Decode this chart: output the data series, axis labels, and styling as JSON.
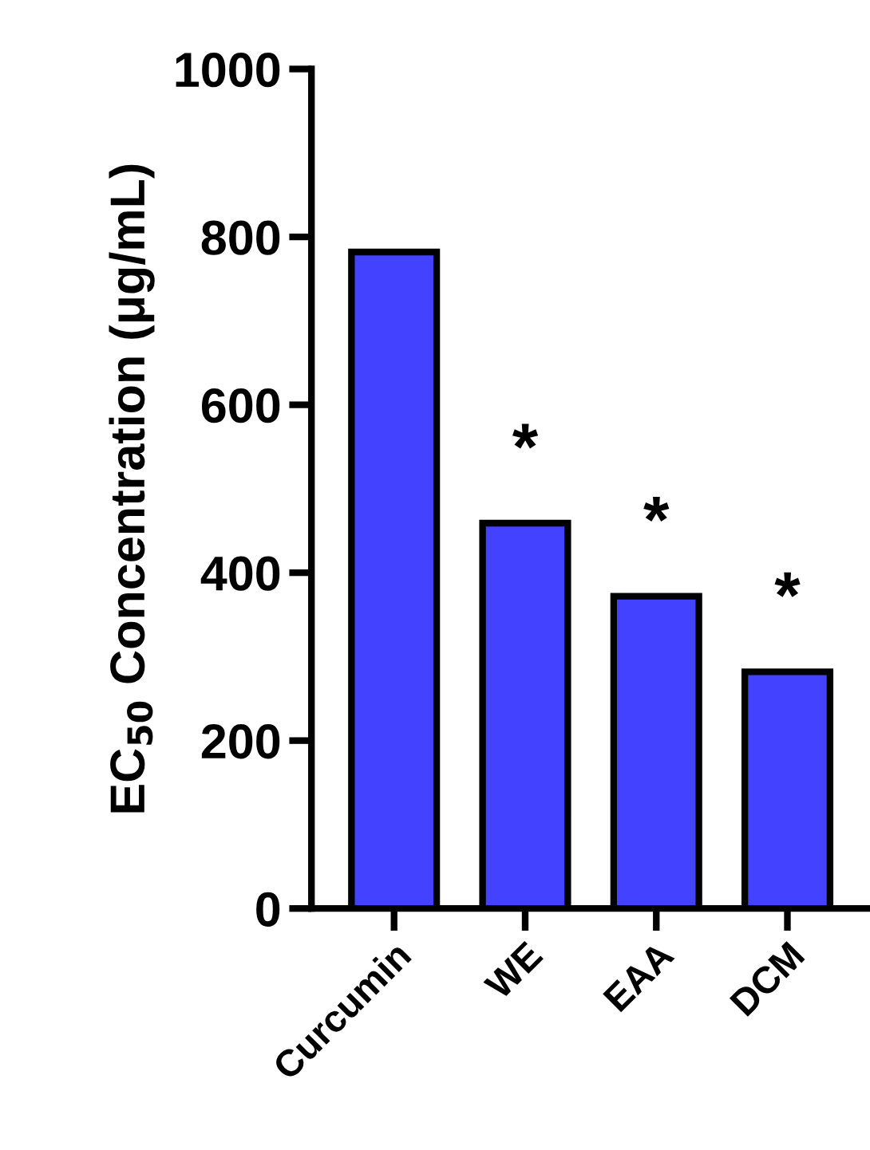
{
  "chart_data": {
    "type": "bar",
    "ylabel": "EC$_{50}$ Concentration (μg/mL)",
    "categories": [
      "Curcumin",
      "WE",
      "EAA",
      "DCM"
    ],
    "values": [
      782,
      459,
      372,
      282
    ],
    "color": "#4343ff",
    "ylim": [
      0,
      1000
    ],
    "yticks": [
      0,
      200,
      400,
      600,
      800,
      1000
    ],
    "grid": false,
    "annotations": [
      "*",
      "*",
      "*"
    ]
  }
}
